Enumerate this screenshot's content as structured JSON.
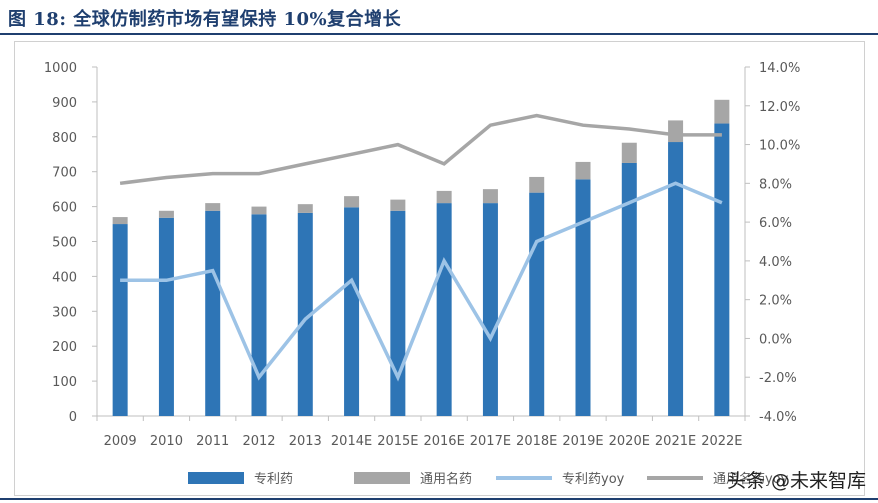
{
  "title": "图 18:  全球仿制药市场有望保持 10%复合增长",
  "watermark": "头条 @未来智库",
  "chart_data": {
    "type": "bar",
    "stacked": true,
    "categories": [
      "2009",
      "2010",
      "2011",
      "2012",
      "2013",
      "2014E",
      "2015E",
      "2016E",
      "2017E",
      "2018E",
      "2019E",
      "2020E",
      "2021E",
      "2022E"
    ],
    "series": [
      {
        "name": "专利药",
        "kind": "bar",
        "axis": "left",
        "color": "#2e75b6",
        "values": [
          550,
          568,
          588,
          578,
          582,
          598,
          588,
          610,
          610,
          640,
          678,
          725,
          785,
          838
        ]
      },
      {
        "name": "通用名药",
        "kind": "bar",
        "axis": "left",
        "color": "#a6a6a6",
        "values": [
          20,
          20,
          22,
          22,
          25,
          32,
          32,
          35,
          40,
          45,
          50,
          58,
          62,
          68
        ]
      },
      {
        "name": "专利药yoy",
        "kind": "line",
        "axis": "right",
        "color": "#9dc3e6",
        "values": [
          3.0,
          3.0,
          3.5,
          -2.0,
          1.0,
          3.0,
          -2.0,
          4.0,
          0.0,
          5.0,
          6.0,
          7.0,
          8.0,
          7.0
        ]
      },
      {
        "name": "通用名药yoy",
        "kind": "line",
        "axis": "right",
        "color": "#a6a6a6",
        "values": [
          8.0,
          8.3,
          8.5,
          8.5,
          9.0,
          9.5,
          10.0,
          9.0,
          11.0,
          11.5,
          11.0,
          10.8,
          10.5,
          10.5
        ]
      }
    ],
    "y_left": {
      "min": 0,
      "max": 1000,
      "step": 100,
      "ticks": [
        "0",
        "100",
        "200",
        "300",
        "400",
        "500",
        "600",
        "700",
        "800",
        "900",
        "1000"
      ]
    },
    "y_right": {
      "min": -4,
      "max": 14,
      "step": 2,
      "ticks": [
        "-4.0%",
        "-2.0%",
        "0.0%",
        "2.0%",
        "4.0%",
        "6.0%",
        "8.0%",
        "10.0%",
        "12.0%",
        "14.0%"
      ]
    },
    "grid": false,
    "legend": "bottom"
  }
}
